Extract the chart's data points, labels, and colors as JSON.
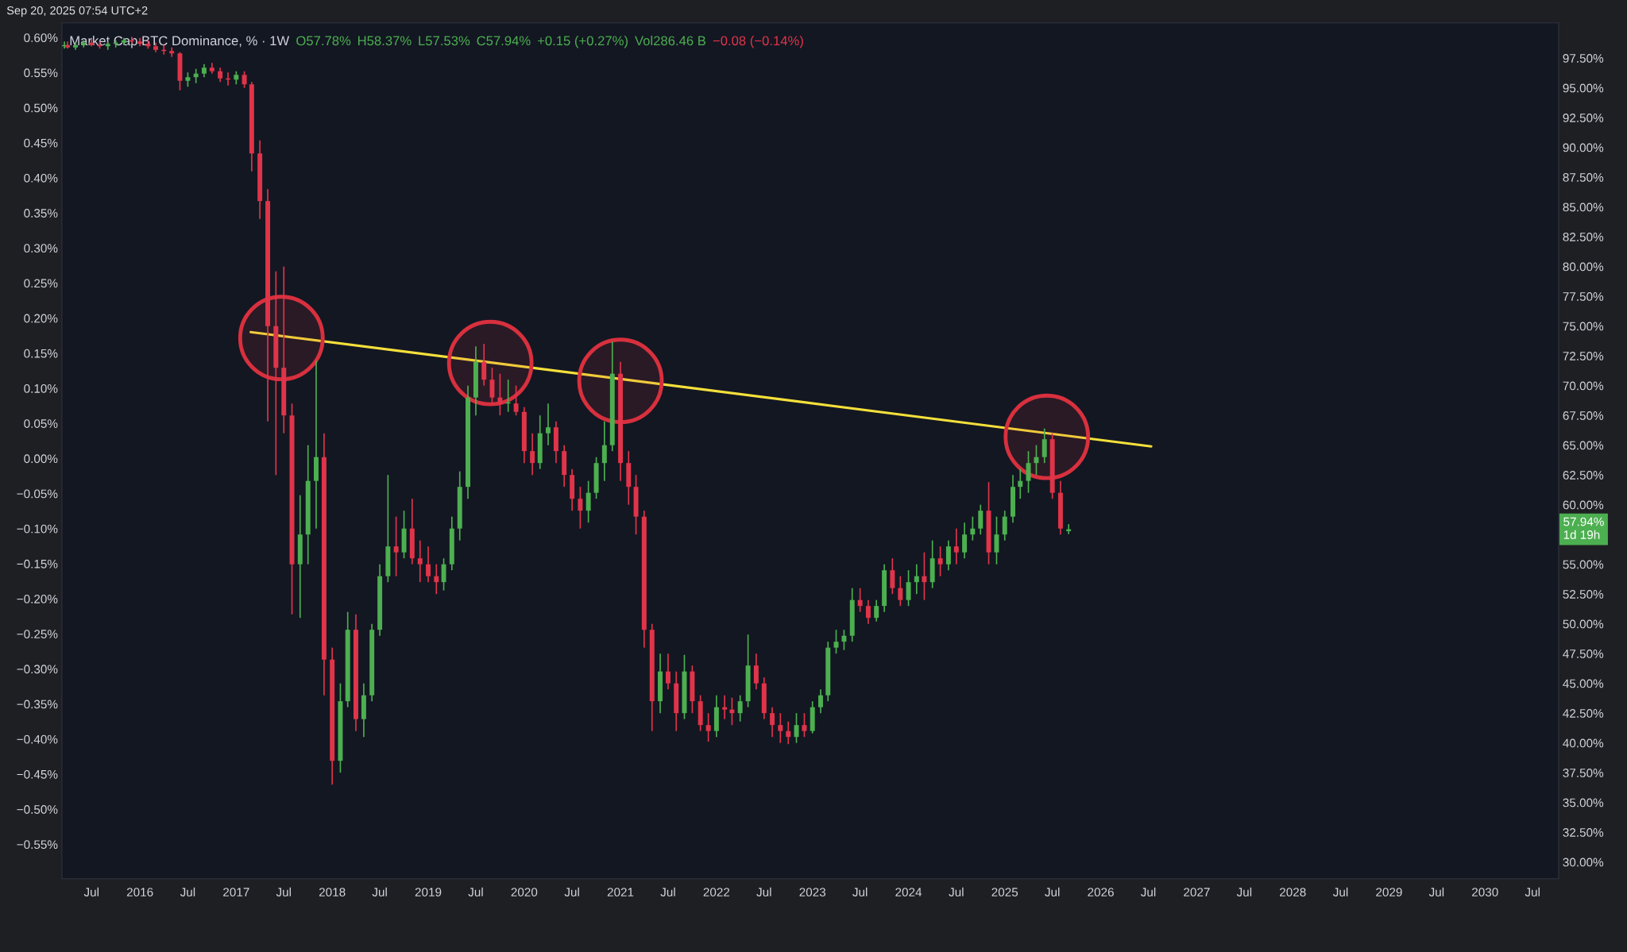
{
  "chart_data": {
    "type": "candlestick",
    "title": "Market Cap BTC Dominance, % · 1W",
    "annotations": [
      "Sep 20, 2025 07:54 UTC+2",
      "O57.78%",
      "H58.37%",
      "L57.53%",
      "C57.94%",
      "+0.15 (+0.27%)",
      "Vol286.46 B",
      "−0.08 (−0.14%)",
      "57.94%",
      "1d 19h"
    ],
    "xlim": [
      "2015-03-10",
      "2030-10-08"
    ],
    "xticks": [
      {
        "value": "2015-07-01",
        "label": "Jul"
      },
      {
        "value": "2016-01-01",
        "label": "2016"
      },
      {
        "value": "2016-07-01",
        "label": "Jul"
      },
      {
        "value": "2017-01-01",
        "label": "2017"
      },
      {
        "value": "2017-07-01",
        "label": "Jul"
      },
      {
        "value": "2018-01-01",
        "label": "2018"
      },
      {
        "value": "2018-07-01",
        "label": "Jul"
      },
      {
        "value": "2019-01-01",
        "label": "2019"
      },
      {
        "value": "2019-07-01",
        "label": "Jul"
      },
      {
        "value": "2020-01-01",
        "label": "2020"
      },
      {
        "value": "2020-07-01",
        "label": "Jul"
      },
      {
        "value": "2021-01-01",
        "label": "2021"
      },
      {
        "value": "2021-07-01",
        "label": "Jul"
      },
      {
        "value": "2022-01-01",
        "label": "2022"
      },
      {
        "value": "2022-07-01",
        "label": "Jul"
      },
      {
        "value": "2023-01-01",
        "label": "2023"
      },
      {
        "value": "2023-07-01",
        "label": "Jul"
      },
      {
        "value": "2024-01-01",
        "label": "2024"
      },
      {
        "value": "2024-07-01",
        "label": "Jul"
      },
      {
        "value": "2025-01-01",
        "label": "2025"
      },
      {
        "value": "2025-07-01",
        "label": "Jul"
      },
      {
        "value": "2026-01-01",
        "label": "2026"
      },
      {
        "value": "2026-07-01",
        "label": "Jul"
      },
      {
        "value": "2027-01-01",
        "label": "2027"
      },
      {
        "value": "2027-07-01",
        "label": "Jul"
      },
      {
        "value": "2028-01-01",
        "label": "2028"
      },
      {
        "value": "2028-07-01",
        "label": "Jul"
      },
      {
        "value": "2029-01-01",
        "label": "2029"
      },
      {
        "value": "2029-07-01",
        "label": "Jul"
      },
      {
        "value": "2030-01-01",
        "label": "2030"
      },
      {
        "value": "2030-07-01",
        "label": "Jul"
      }
    ],
    "ylim": [
      -0.599,
      0.621
    ],
    "yticks": [
      {
        "value": 0.6,
        "label": "0.60%"
      },
      {
        "value": 0.55,
        "label": "0.55%"
      },
      {
        "value": 0.5,
        "label": "0.50%"
      },
      {
        "value": 0.45,
        "label": "0.45%"
      },
      {
        "value": 0.4,
        "label": "0.40%"
      },
      {
        "value": 0.35,
        "label": "0.35%"
      },
      {
        "value": 0.3,
        "label": "0.30%"
      },
      {
        "value": 0.25,
        "label": "0.25%"
      },
      {
        "value": 0.2,
        "label": "0.20%"
      },
      {
        "value": 0.15,
        "label": "0.15%"
      },
      {
        "value": 0.1,
        "label": "0.10%"
      },
      {
        "value": 0.05,
        "label": "0.05%"
      },
      {
        "value": 0.0,
        "label": "0.00%"
      },
      {
        "value": -0.05,
        "label": "−0.05%"
      },
      {
        "value": -0.1,
        "label": "−0.10%"
      },
      {
        "value": -0.15,
        "label": "−0.15%"
      },
      {
        "value": -0.2,
        "label": "−0.20%"
      },
      {
        "value": -0.25,
        "label": "−0.25%"
      },
      {
        "value": -0.3,
        "label": "−0.30%"
      },
      {
        "value": -0.35,
        "label": "−0.35%"
      },
      {
        "value": -0.4,
        "label": "−0.40%"
      },
      {
        "value": -0.45,
        "label": "−0.45%"
      },
      {
        "value": -0.5,
        "label": "−0.50%"
      },
      {
        "value": -0.55,
        "label": "−0.55%"
      }
    ],
    "y2lim": [
      28.6,
      100.46
    ],
    "y2ticks": [
      {
        "value": 30,
        "label": "30.00%"
      },
      {
        "value": 32.5,
        "label": "32.50%"
      },
      {
        "value": 35,
        "label": "35.00%"
      },
      {
        "value": 37.5,
        "label": "37.50%"
      },
      {
        "value": 40,
        "label": "40.00%"
      },
      {
        "value": 42.5,
        "label": "42.50%"
      },
      {
        "value": 45,
        "label": "45.00%"
      },
      {
        "value": 47.5,
        "label": "47.50%"
      },
      {
        "value": 50,
        "label": "50.00%"
      },
      {
        "value": 52.5,
        "label": "52.50%"
      },
      {
        "value": 55,
        "label": "55.00%"
      },
      {
        "value": 60,
        "label": "60.00%"
      },
      {
        "value": 62.5,
        "label": "62.50%"
      },
      {
        "value": 65,
        "label": "65.00%"
      },
      {
        "value": 67.5,
        "label": "67.50%"
      },
      {
        "value": 70,
        "label": "70.00%"
      },
      {
        "value": 72.5,
        "label": "72.50%"
      },
      {
        "value": 75,
        "label": "75.00%"
      },
      {
        "value": 77.5,
        "label": "77.50%"
      },
      {
        "value": 80,
        "label": "80.00%"
      },
      {
        "value": 82.5,
        "label": "82.50%"
      },
      {
        "value": 85,
        "label": "85.00%"
      },
      {
        "value": 87.5,
        "label": "87.50%"
      },
      {
        "value": 90,
        "label": "90.00%"
      },
      {
        "value": 92.5,
        "label": "92.50%"
      },
      {
        "value": 95,
        "label": "95.00%"
      },
      {
        "value": 97.5,
        "label": "97.50%"
      }
    ],
    "series": [
      {
        "axis": "y2",
        "x": [
          "2015-03-20",
          "2015-04",
          "2015-05",
          "2015-06",
          "2015-07",
          "2015-08",
          "2015-09",
          "2015-10",
          "2015-11",
          "2015-12",
          "2016-01",
          "2016-02",
          "2016-03",
          "2016-04",
          "2016-05",
          "2016-06",
          "2016-07",
          "2016-08",
          "2016-09",
          "2016-10",
          "2016-11",
          "2016-12",
          "2017-01",
          "2017-02",
          "2017-03",
          "2017-04",
          "2017-05",
          "2017-06",
          "2017-07",
          "2017-08",
          "2017-09",
          "2017-10",
          "2017-11",
          "2017-12",
          "2018-01",
          "2018-02",
          "2018-03",
          "2018-04",
          "2018-05",
          "2018-06",
          "2018-07",
          "2018-08",
          "2018-09",
          "2018-10",
          "2018-11",
          "2018-12",
          "2019-01",
          "2019-02",
          "2019-03",
          "2019-04",
          "2019-05",
          "2019-06",
          "2019-07",
          "2019-08",
          "2019-09",
          "2019-10",
          "2019-11",
          "2019-12",
          "2020-01",
          "2020-02",
          "2020-03",
          "2020-04",
          "2020-05",
          "2020-06",
          "2020-07",
          "2020-08",
          "2020-09",
          "2020-10",
          "2020-11",
          "2020-12",
          "2021-01",
          "2021-02",
          "2021-03",
          "2021-04",
          "2021-05",
          "2021-06",
          "2021-07",
          "2021-08",
          "2021-09",
          "2021-10",
          "2021-11",
          "2021-12",
          "2022-01",
          "2022-02",
          "2022-03",
          "2022-04",
          "2022-05",
          "2022-06",
          "2022-07",
          "2022-08",
          "2022-09",
          "2022-10",
          "2022-11",
          "2022-12",
          "2023-01",
          "2023-02",
          "2023-03",
          "2023-04",
          "2023-05",
          "2023-06",
          "2023-07",
          "2023-08",
          "2023-09",
          "2023-10",
          "2023-11",
          "2023-12",
          "2024-01",
          "2024-02",
          "2024-03",
          "2024-04",
          "2024-05",
          "2024-06",
          "2024-07",
          "2024-08",
          "2024-09",
          "2024-10",
          "2024-11",
          "2024-12",
          "2025-01",
          "2025-02",
          "2025-03",
          "2025-04",
          "2025-05",
          "2025-06",
          "2025-07",
          "2025-08",
          "2025-09"
        ],
        "ohlc": [
          [
            98.5,
            98.9,
            98.3,
            98.6
          ],
          [
            98.6,
            98.9,
            98.3,
            98.4
          ],
          [
            98.4,
            98.8,
            98.2,
            98.6
          ],
          [
            98.6,
            99.0,
            98.4,
            98.8
          ],
          [
            98.8,
            99.1,
            98.5,
            98.6
          ],
          [
            98.6,
            98.9,
            98.3,
            98.5
          ],
          [
            98.5,
            98.9,
            98.2,
            98.7
          ],
          [
            98.7,
            99.0,
            98.4,
            98.8
          ],
          [
            98.8,
            99.2,
            98.6,
            99.0
          ],
          [
            99.0,
            99.3,
            98.7,
            98.9
          ],
          [
            98.9,
            99.2,
            98.5,
            98.7
          ],
          [
            98.7,
            99.0,
            98.3,
            98.5
          ],
          [
            98.5,
            98.8,
            98.0,
            98.2
          ],
          [
            98.2,
            98.6,
            97.8,
            98.1
          ],
          [
            98.1,
            98.4,
            97.6,
            97.9
          ],
          [
            97.9,
            98.0,
            94.8,
            95.6
          ],
          [
            95.6,
            96.3,
            95.1,
            95.9
          ],
          [
            95.9,
            96.6,
            95.4,
            96.2
          ],
          [
            96.2,
            97.0,
            95.9,
            96.7
          ],
          [
            96.7,
            97.1,
            96.2,
            96.4
          ],
          [
            96.4,
            96.7,
            95.5,
            95.8
          ],
          [
            95.8,
            96.3,
            95.2,
            95.7
          ],
          [
            95.7,
            96.4,
            95.3,
            96.1
          ],
          [
            96.1,
            96.4,
            95.0,
            95.3
          ],
          [
            95.3,
            95.5,
            88.0,
            89.5
          ],
          [
            89.5,
            90.6,
            84.0,
            85.5
          ],
          [
            85.5,
            86.5,
            67.0,
            75.0
          ],
          [
            75.0,
            79.6,
            62.5,
            71.5
          ],
          [
            71.5,
            80.0,
            66.0,
            67.5
          ],
          [
            67.5,
            68.5,
            50.8,
            55.0
          ],
          [
            55.0,
            60.8,
            50.5,
            57.5
          ],
          [
            57.5,
            65.0,
            55.0,
            62.0
          ],
          [
            62.0,
            72.1,
            58.0,
            64.0
          ],
          [
            64.0,
            66.0,
            44.0,
            47.0
          ],
          [
            47.0,
            48.0,
            36.5,
            38.5
          ],
          [
            38.5,
            45.0,
            37.5,
            43.5
          ],
          [
            43.5,
            51.0,
            43.0,
            49.5
          ],
          [
            49.5,
            50.8,
            41.0,
            42.0
          ],
          [
            42.0,
            45.0,
            40.5,
            44.0
          ],
          [
            44.0,
            50.0,
            43.5,
            49.5
          ],
          [
            49.5,
            55.0,
            49.0,
            54.0
          ],
          [
            54.0,
            62.5,
            53.5,
            56.5
          ],
          [
            56.5,
            59.0,
            54.0,
            56.0
          ],
          [
            56.0,
            59.5,
            55.5,
            58.0
          ],
          [
            58.0,
            60.5,
            55.0,
            55.5
          ],
          [
            55.5,
            57.0,
            53.5,
            55.0
          ],
          [
            55.0,
            56.5,
            53.5,
            54.0
          ],
          [
            54.0,
            55.0,
            52.5,
            53.5
          ],
          [
            53.5,
            55.5,
            52.8,
            55.0
          ],
          [
            55.0,
            59.0,
            54.5,
            58.0
          ],
          [
            58.0,
            62.8,
            57.0,
            61.5
          ],
          [
            61.5,
            70.0,
            60.5,
            69.0
          ],
          [
            69.0,
            73.3,
            67.5,
            72.0
          ],
          [
            72.0,
            73.5,
            70.0,
            70.5
          ],
          [
            70.5,
            71.5,
            68.5,
            69.0
          ],
          [
            69.0,
            71.0,
            67.5,
            68.5
          ],
          [
            68.5,
            70.5,
            67.8,
            68.6
          ],
          [
            68.5,
            70.0,
            67.5,
            67.8
          ],
          [
            67.8,
            68.2,
            63.5,
            64.5
          ],
          [
            64.5,
            66.0,
            62.5,
            63.5
          ],
          [
            63.5,
            67.5,
            63.0,
            66.0
          ],
          [
            66.0,
            68.5,
            65.0,
            66.5
          ],
          [
            66.5,
            67.0,
            63.5,
            64.5
          ],
          [
            64.5,
            65.0,
            61.5,
            62.5
          ],
          [
            62.5,
            63.0,
            59.5,
            60.5
          ],
          [
            60.5,
            61.5,
            58.0,
            59.5
          ],
          [
            59.5,
            62.0,
            58.5,
            61.0
          ],
          [
            61.0,
            64.0,
            60.5,
            63.5
          ],
          [
            63.5,
            67.0,
            62.0,
            65.0
          ],
          [
            65.0,
            73.7,
            64.5,
            71.0
          ],
          [
            71.0,
            72.0,
            62.0,
            63.5
          ],
          [
            63.5,
            64.5,
            60.0,
            61.5
          ],
          [
            61.5,
            62.5,
            57.5,
            59.0
          ],
          [
            59.0,
            59.5,
            48.0,
            49.5
          ],
          [
            49.5,
            50.0,
            41.0,
            43.5
          ],
          [
            43.5,
            47.5,
            42.5,
            46.0
          ],
          [
            46.0,
            47.5,
            44.5,
            45.0
          ],
          [
            45.0,
            46.0,
            41.0,
            42.5
          ],
          [
            42.5,
            47.4,
            42.0,
            46.0
          ],
          [
            46.0,
            46.5,
            42.5,
            43.5
          ],
          [
            43.5,
            44.0,
            41.0,
            41.5
          ],
          [
            41.5,
            42.5,
            40.1,
            41.0
          ],
          [
            41.0,
            44.0,
            40.5,
            43.0
          ],
          [
            43.0,
            44.0,
            42.0,
            42.8
          ],
          [
            42.8,
            43.8,
            41.5,
            42.5
          ],
          [
            42.5,
            44.0,
            41.8,
            43.5
          ],
          [
            43.5,
            49.1,
            43.0,
            46.5
          ],
          [
            46.5,
            47.5,
            44.5,
            45.0
          ],
          [
            45.0,
            45.5,
            42.0,
            42.5
          ],
          [
            42.5,
            43.0,
            40.5,
            41.5
          ],
          [
            41.5,
            42.5,
            40.0,
            41.0
          ],
          [
            41.0,
            41.8,
            39.9,
            40.5
          ],
          [
            40.5,
            42.5,
            40.0,
            41.5
          ],
          [
            41.5,
            42.5,
            40.5,
            41.0
          ],
          [
            41.0,
            43.5,
            40.8,
            43.0
          ],
          [
            43.0,
            44.5,
            42.5,
            44.0
          ],
          [
            44.0,
            48.5,
            43.5,
            48.0
          ],
          [
            48.0,
            49.5,
            47.5,
            48.5
          ],
          [
            48.5,
            49.5,
            47.8,
            49.0
          ],
          [
            49.0,
            53.0,
            48.5,
            52.0
          ],
          [
            52.0,
            53.0,
            51.0,
            51.5
          ],
          [
            51.5,
            52.0,
            50.0,
            50.5
          ],
          [
            50.5,
            52.0,
            50.2,
            51.5
          ],
          [
            51.5,
            55.0,
            51.0,
            54.5
          ],
          [
            54.5,
            55.5,
            52.5,
            53.0
          ],
          [
            53.0,
            54.0,
            51.5,
            52.0
          ],
          [
            52.0,
            54.5,
            51.5,
            53.5
          ],
          [
            53.5,
            55.0,
            52.5,
            54.0
          ],
          [
            54.0,
            56.0,
            52.0,
            53.5
          ],
          [
            53.5,
            57.0,
            53.0,
            55.5
          ],
          [
            55.5,
            56.5,
            54.0,
            55.0
          ],
          [
            55.0,
            57.0,
            54.5,
            56.5
          ],
          [
            56.5,
            58.0,
            55.0,
            56.0
          ],
          [
            56.0,
            58.5,
            55.5,
            57.5
          ],
          [
            57.5,
            59.0,
            57.0,
            58.0
          ],
          [
            58.0,
            60.0,
            57.5,
            59.5
          ],
          [
            59.5,
            61.9,
            55.0,
            56.0
          ],
          [
            56.0,
            59.0,
            55.0,
            57.5
          ],
          [
            57.5,
            59.5,
            57.0,
            59.0
          ],
          [
            59.0,
            62.5,
            58.5,
            61.5
          ],
          [
            61.5,
            63.0,
            60.5,
            62.0
          ],
          [
            62.0,
            64.5,
            61.0,
            63.5
          ],
          [
            63.5,
            65.0,
            62.5,
            64.0
          ],
          [
            64.0,
            66.4,
            63.5,
            65.5
          ],
          [
            65.5,
            66.0,
            60.5,
            61.0
          ],
          [
            61.0,
            62.0,
            57.5,
            58.0
          ],
          [
            57.78,
            58.37,
            57.53,
            57.94
          ]
        ],
        "colors": [
          "#4caf50",
          "#e0344a",
          "#4caf50",
          "#4caf50",
          "#e0344a",
          "#e0344a",
          "#4caf50",
          "#4caf50",
          "#4caf50",
          "#e0344a",
          "#e0344a",
          "#e0344a",
          "#e0344a",
          "#e0344a",
          "#e0344a",
          "#e0344a",
          "#4caf50",
          "#4caf50",
          "#4caf50",
          "#e0344a",
          "#e0344a",
          "#e0344a",
          "#4caf50",
          "#e0344a",
          "#e0344a",
          "#e0344a",
          "#e0344a",
          "#e0344a",
          "#e0344a",
          "#e0344a",
          "#4caf50",
          "#4caf50",
          "#4caf50",
          "#e0344a",
          "#e0344a",
          "#4caf50",
          "#4caf50",
          "#e0344a",
          "#4caf50",
          "#4caf50",
          "#4caf50",
          "#4caf50",
          "#e0344a",
          "#4caf50",
          "#e0344a",
          "#e0344a",
          "#e0344a",
          "#e0344a",
          "#4caf50",
          "#4caf50",
          "#4caf50",
          "#4caf50",
          "#4caf50",
          "#e0344a",
          "#e0344a",
          "#e0344a",
          "#4caf50",
          "#e0344a",
          "#e0344a",
          "#e0344a",
          "#4caf50",
          "#4caf50",
          "#e0344a",
          "#e0344a",
          "#e0344a",
          "#e0344a",
          "#4caf50",
          "#4caf50",
          "#4caf50",
          "#4caf50",
          "#e0344a",
          "#e0344a",
          "#e0344a",
          "#e0344a",
          "#e0344a",
          "#4caf50",
          "#e0344a",
          "#e0344a",
          "#4caf50",
          "#e0344a",
          "#e0344a",
          "#e0344a",
          "#4caf50",
          "#e0344a",
          "#e0344a",
          "#4caf50",
          "#4caf50",
          "#e0344a",
          "#e0344a",
          "#e0344a",
          "#e0344a",
          "#e0344a",
          "#4caf50",
          "#e0344a",
          "#4caf50",
          "#4caf50",
          "#4caf50",
          "#4caf50",
          "#4caf50",
          "#4caf50",
          "#e0344a",
          "#e0344a",
          "#4caf50",
          "#4caf50",
          "#e0344a",
          "#e0344a",
          "#4caf50",
          "#4caf50",
          "#e0344a",
          "#4caf50",
          "#e0344a",
          "#4caf50",
          "#e0344a",
          "#4caf50",
          "#4caf50",
          "#4caf50",
          "#e0344a",
          "#4caf50",
          "#4caf50",
          "#4caf50",
          "#4caf50",
          "#4caf50",
          "#4caf50",
          "#4caf50",
          "#e0344a",
          "#e0344a",
          "#4caf50"
        ]
      },
      {
        "type": "line",
        "axis": "y2",
        "x": [
          "2017-02-25",
          "2026-07-12"
        ],
        "values": [
          74.5,
          64.9
        ],
        "color": "#f5e03b"
      },
      {
        "type": "scatter",
        "axis": "y2",
        "marker": "circle",
        "x": [
          "2017-06-22",
          "2019-08-25",
          "2021-01-01",
          "2025-06-10"
        ],
        "values": [
          74.0,
          71.9,
          70.4,
          65.7
        ],
        "color": "#d8303e"
      }
    ]
  }
}
